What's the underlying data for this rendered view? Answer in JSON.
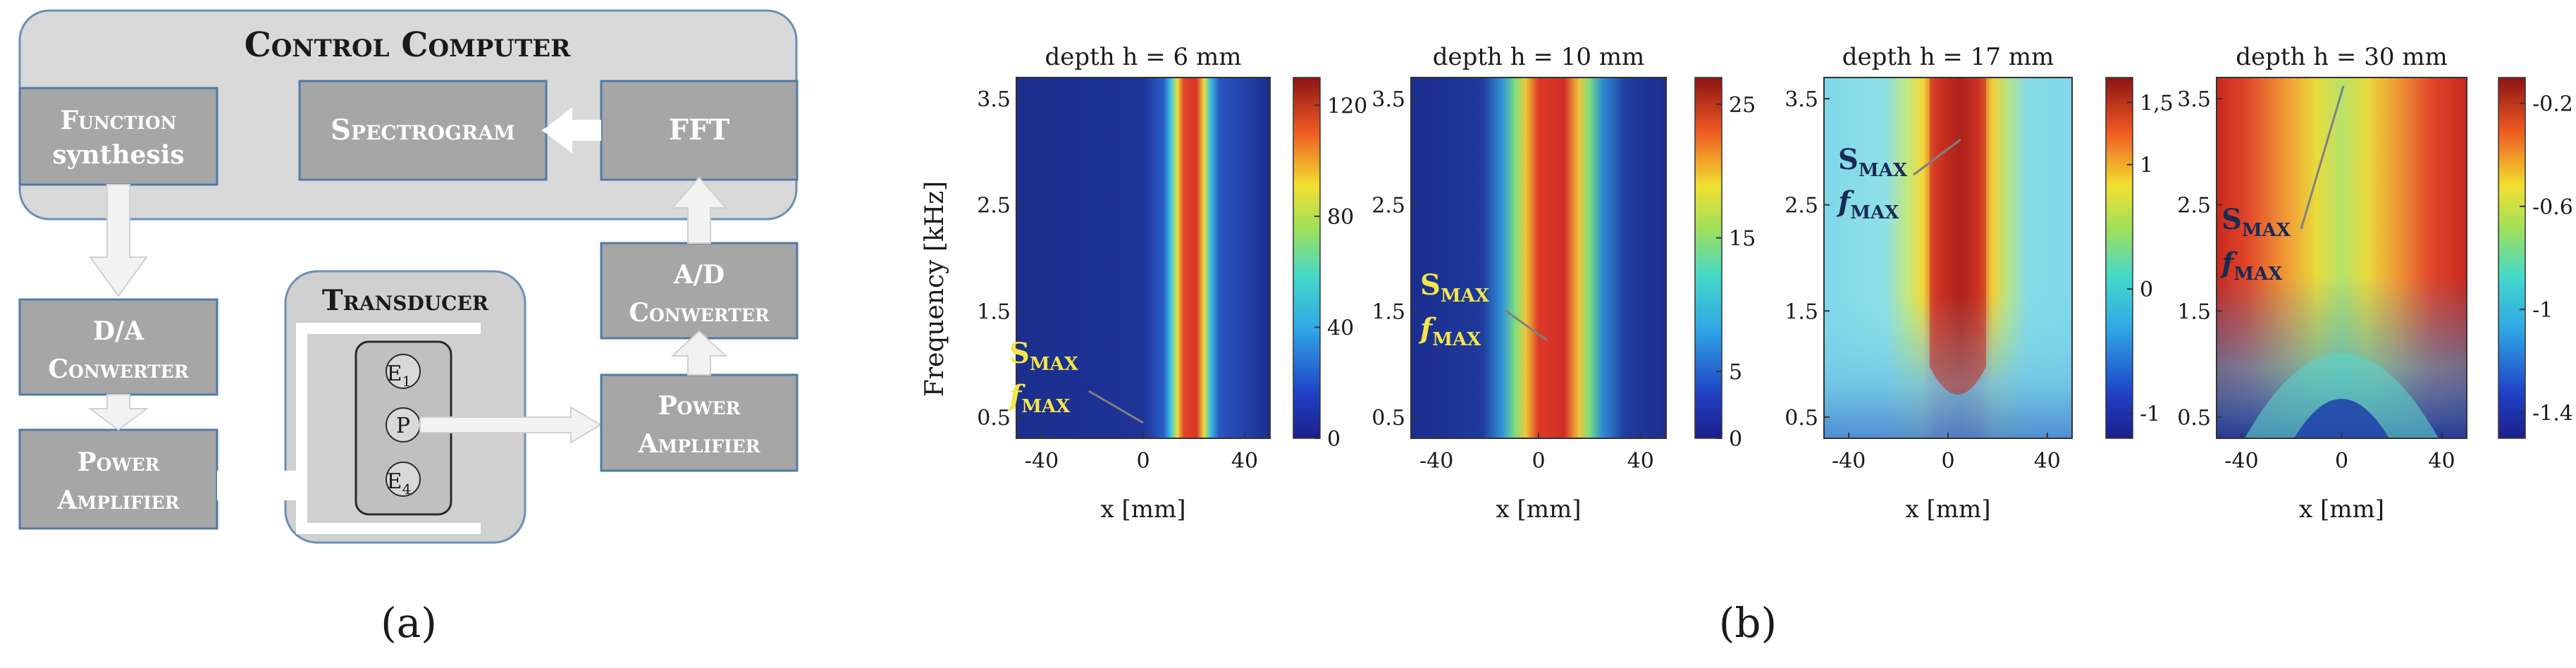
{
  "block_diagram": {
    "control_computer": "Control Computer",
    "function_synthesis_1": "Function",
    "function_synthesis_2": "synthesis",
    "spectrogram": "Spectrogram",
    "fft": "FFT",
    "da_1": "D/A",
    "da_2": "Conwerter",
    "power_amp_left_1": "Power",
    "power_amp_left_2": "Amplifier",
    "transducer": "Transducer",
    "e1_main": "E",
    "e1_sub": "1",
    "p": "P",
    "e4_main": "E",
    "e4_sub": "4",
    "ad_1": "A/D",
    "ad_2": "Conwerter",
    "power_amp_right_1": "Power",
    "power_amp_right_2": "Amplifier"
  },
  "panel_labels": {
    "a": "(a)",
    "b": "(b)"
  },
  "spectrograms": {
    "ylabel": "Frequency [kHz]",
    "xlabel": "x [mm]",
    "yticks": [
      "3.5",
      "2.5",
      "1.5",
      "0.5"
    ],
    "xticks": [
      "-40",
      "0",
      "40"
    ],
    "smax_main": "S",
    "smax_sub": "MAX",
    "fmax_main": "f",
    "fmax_sub": "MAX"
  },
  "chart_data": [
    {
      "type": "heatmap",
      "title": "depth  h = 6 mm",
      "xlabel": "x [mm]",
      "ylabel": "Frequency [kHz]",
      "xlim": [
        -50,
        50
      ],
      "ylim": [
        0.3,
        3.7
      ],
      "colorbar_ticks": [
        "120",
        "80",
        "40",
        "0"
      ],
      "colorbar_range": [
        0,
        130
      ],
      "annotation": "S_MAX f_MAX"
    },
    {
      "type": "heatmap",
      "title": "depth  h = 10 mm",
      "xlabel": "x [mm]",
      "ylabel": "",
      "xlim": [
        -50,
        50
      ],
      "ylim": [
        0.3,
        3.7
      ],
      "colorbar_ticks": [
        "25",
        "15",
        "5",
        "0"
      ],
      "colorbar_range": [
        0,
        27
      ],
      "annotation": "S_MAX f_MAX"
    },
    {
      "type": "heatmap",
      "title": "depth  h = 17 mm",
      "xlabel": "x [mm]",
      "ylabel": "",
      "xlim": [
        -50,
        50
      ],
      "ylim": [
        0.3,
        3.7
      ],
      "colorbar_ticks": [
        "1,5",
        "1",
        "0",
        "-1"
      ],
      "colorbar_range": [
        -1.2,
        1.7
      ],
      "annotation": "S_MAX f_MAX"
    },
    {
      "type": "heatmap",
      "title": "depth  h = 30 mm",
      "xlabel": "x [mm]",
      "ylabel": "",
      "xlim": [
        -50,
        50
      ],
      "ylim": [
        0.3,
        3.7
      ],
      "colorbar_ticks": [
        "-0.2",
        "-0.6",
        "-1",
        "-1.4"
      ],
      "colorbar_range": [
        -1.5,
        -0.1
      ],
      "annotation": "S_MAX f_MAX"
    }
  ]
}
